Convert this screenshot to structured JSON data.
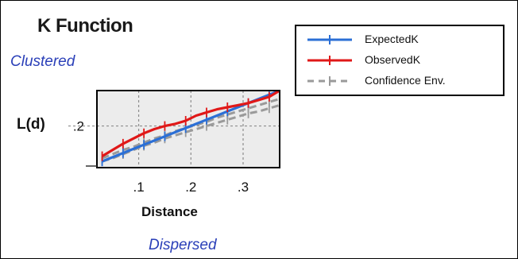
{
  "chart_data": {
    "type": "line",
    "title": "K Function",
    "ylabel": "L(d)",
    "xlabel": "Distance",
    "top_annotation": "Clustered",
    "bottom_annotation": "Dispersed",
    "xlim": [
      0.02,
      0.37
    ],
    "ylim": [
      0.0,
      0.37
    ],
    "xticks": [
      0.1,
      0.2,
      0.3
    ],
    "xtick_labels": [
      ".1",
      ".2",
      ".3"
    ],
    "yticks": [
      0.2
    ],
    "ytick_labels": [
      ".2"
    ],
    "grid": true,
    "legend_position": "top-right",
    "series": [
      {
        "name": "ExpectedK",
        "color": "#2b6fd6",
        "dash": "solid",
        "x": [
          0.03,
          0.05,
          0.07,
          0.09,
          0.11,
          0.13,
          0.15,
          0.17,
          0.19,
          0.21,
          0.23,
          0.25,
          0.27,
          0.29,
          0.31,
          0.33,
          0.35,
          0.37
        ],
        "y": [
          0.03,
          0.05,
          0.07,
          0.09,
          0.11,
          0.13,
          0.15,
          0.17,
          0.19,
          0.21,
          0.23,
          0.25,
          0.27,
          0.29,
          0.31,
          0.33,
          0.35,
          0.37
        ]
      },
      {
        "name": "ObservedK",
        "color": "#e01818",
        "dash": "solid",
        "x": [
          0.03,
          0.05,
          0.07,
          0.09,
          0.11,
          0.13,
          0.15,
          0.17,
          0.19,
          0.21,
          0.23,
          0.25,
          0.27,
          0.29,
          0.31,
          0.33,
          0.35,
          0.37
        ],
        "y": [
          0.055,
          0.085,
          0.115,
          0.14,
          0.165,
          0.185,
          0.2,
          0.21,
          0.225,
          0.25,
          0.265,
          0.28,
          0.29,
          0.3,
          0.31,
          0.325,
          0.34,
          0.37
        ]
      },
      {
        "name": "Confidence Env.",
        "color": "#9a9a9a",
        "dash": "dashed",
        "x": [
          0.03,
          0.05,
          0.07,
          0.09,
          0.11,
          0.13,
          0.15,
          0.17,
          0.19,
          0.21,
          0.23,
          0.25,
          0.27,
          0.29,
          0.31,
          0.33,
          0.35,
          0.37
        ],
        "y": [
          0.045,
          0.065,
          0.085,
          0.1,
          0.12,
          0.14,
          0.155,
          0.175,
          0.19,
          0.205,
          0.22,
          0.24,
          0.255,
          0.27,
          0.285,
          0.3,
          0.315,
          0.33
        ]
      },
      {
        "name": "",
        "color": "#9a9a9a",
        "dash": "dashed",
        "x": [
          0.03,
          0.05,
          0.07,
          0.09,
          0.11,
          0.13,
          0.15,
          0.17,
          0.19,
          0.21,
          0.23,
          0.25,
          0.27,
          0.29,
          0.31,
          0.33,
          0.35,
          0.37
        ],
        "y": [
          0.03,
          0.045,
          0.065,
          0.085,
          0.105,
          0.12,
          0.14,
          0.155,
          0.17,
          0.185,
          0.2,
          0.215,
          0.23,
          0.245,
          0.26,
          0.27,
          0.285,
          0.3
        ]
      }
    ]
  }
}
